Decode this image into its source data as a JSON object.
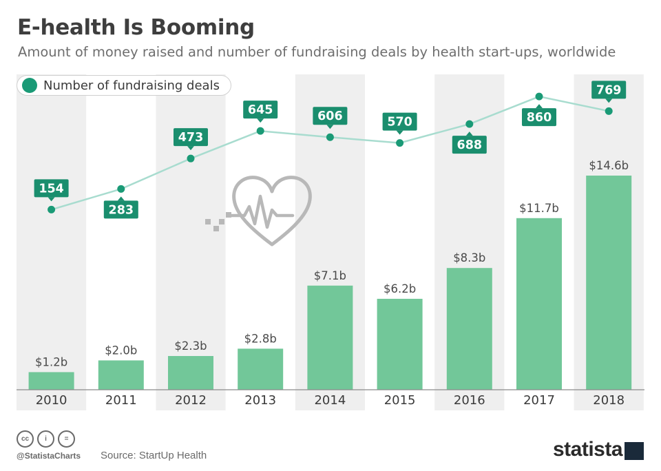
{
  "title": "E-health Is Booming",
  "subtitle": "Amount of money raised and number of fundraising deals by health start-ups, worldwide",
  "legend": {
    "label": "Number of fundraising deals"
  },
  "footer": {
    "handle": "@StatistaCharts",
    "source": "Source: StartUp Health",
    "logo": "statista",
    "icons": [
      "cc-icon",
      "attribution-icon",
      "no-derivatives-icon"
    ],
    "icon_glyphs": [
      "cc",
      "i",
      "="
    ]
  },
  "colors": {
    "bar": "#72c799",
    "line": "#a8dccf",
    "marker": "#1a9a76",
    "label_box": "#1a8e6e",
    "band": "#efefef",
    "baseline": "#8a8a8a"
  },
  "chart_data": {
    "type": "bar+line",
    "categories": [
      "2010",
      "2011",
      "2012",
      "2013",
      "2014",
      "2015",
      "2016",
      "2017",
      "2018"
    ],
    "series": [
      {
        "name": "Amount of money raised",
        "type": "bar",
        "values": [
          1.2,
          2.0,
          2.3,
          2.8,
          7.1,
          6.2,
          8.3,
          11.7,
          14.6
        ],
        "labels": [
          "$1.2b",
          "$2.0b",
          "$2.3b",
          "$2.8b",
          "$7.1b",
          "$6.2b",
          "$8.3b",
          "$11.7b",
          "$14.6b"
        ]
      },
      {
        "name": "Number of fundraising deals",
        "type": "line",
        "values": [
          154,
          283,
          473,
          645,
          606,
          570,
          688,
          860,
          769
        ],
        "labels": [
          "154",
          "283",
          "473",
          "645",
          "606",
          "570",
          "688",
          "860",
          "769"
        ],
        "label_side": [
          "above",
          "below",
          "above",
          "above",
          "above",
          "above",
          "below",
          "below",
          "above"
        ]
      }
    ],
    "bar_ylim": [
      0,
      14.6
    ],
    "line_ylim": [
      0,
      1000
    ],
    "grid": false,
    "legend_position": "top-left"
  }
}
